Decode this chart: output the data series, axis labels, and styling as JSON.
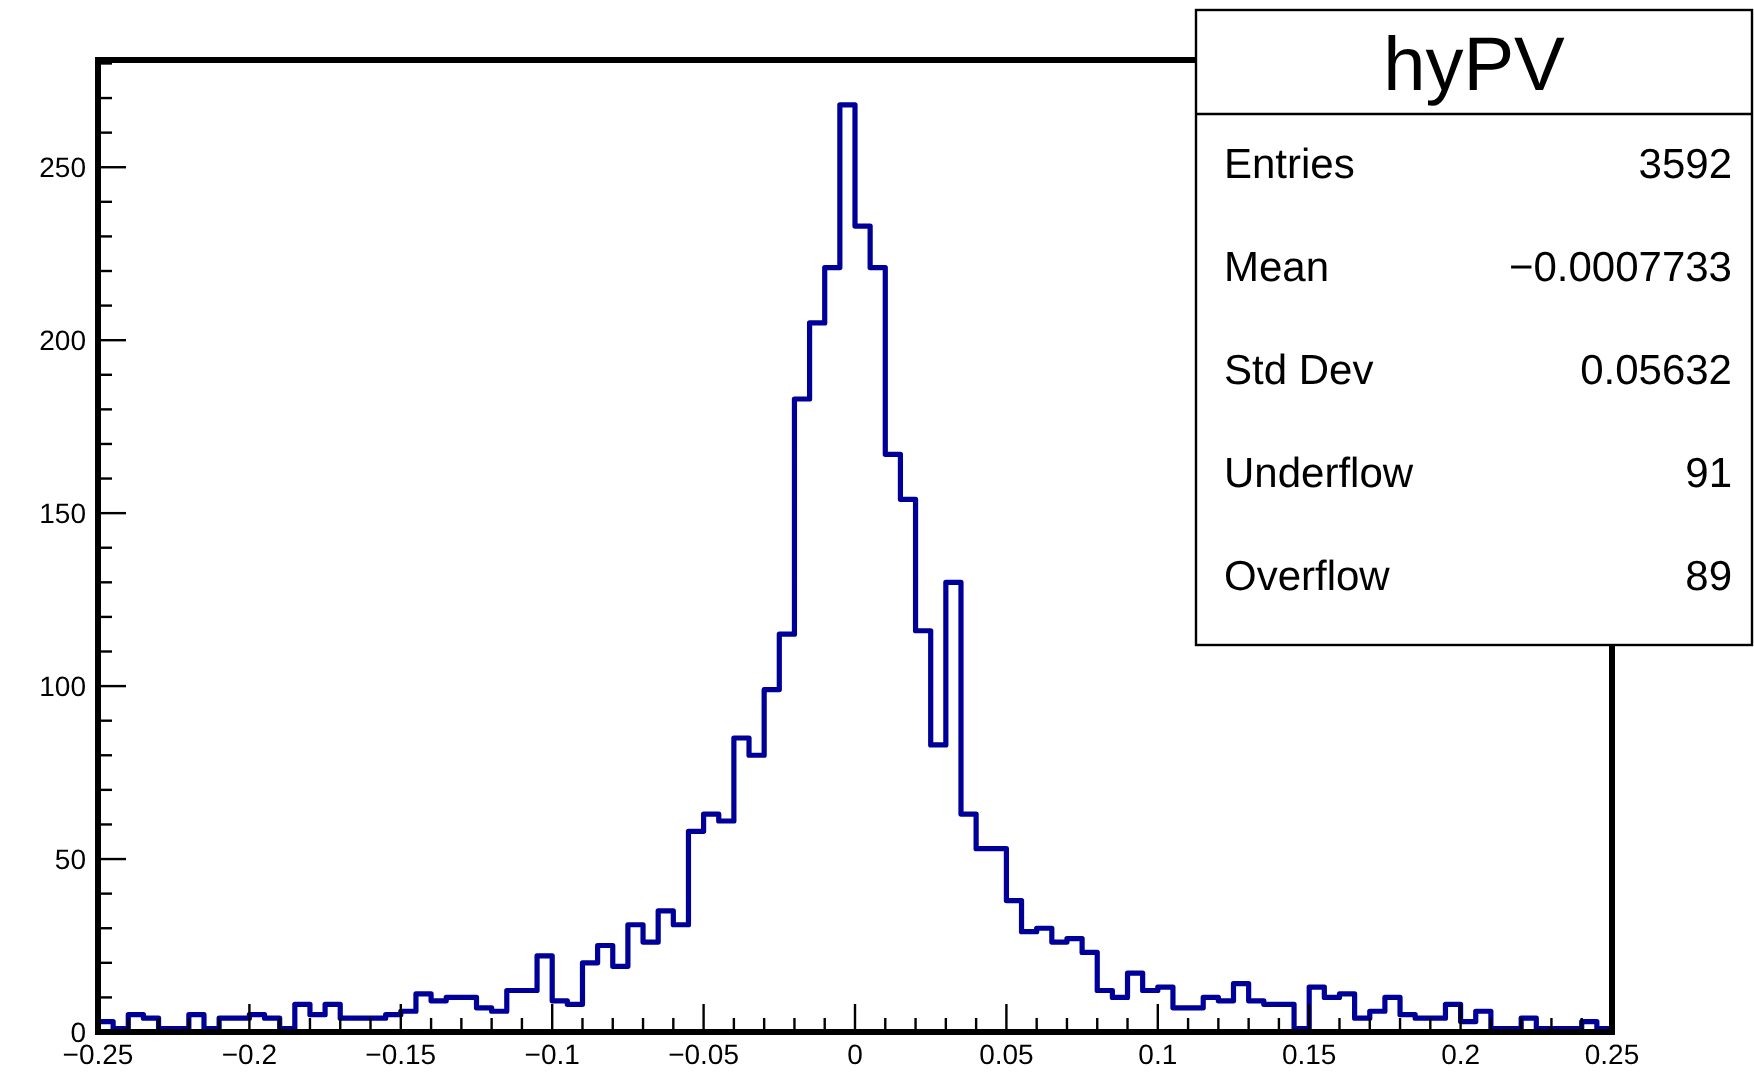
{
  "chart_data": {
    "type": "histogram",
    "bins": [
      -0.25,
      -0.245,
      -0.24,
      -0.235,
      -0.23,
      -0.225,
      -0.22,
      -0.215,
      -0.21,
      -0.205,
      -0.2,
      -0.195,
      -0.19,
      -0.185,
      -0.18,
      -0.175,
      -0.17,
      -0.165,
      -0.16,
      -0.155,
      -0.15,
      -0.145,
      -0.14,
      -0.135,
      -0.13,
      -0.125,
      -0.12,
      -0.115,
      -0.11,
      -0.105,
      -0.1,
      -0.095,
      -0.09,
      -0.085,
      -0.08,
      -0.075,
      -0.07,
      -0.065,
      -0.06,
      -0.055,
      -0.05,
      -0.045,
      -0.04,
      -0.035,
      -0.03,
      -0.025,
      -0.02,
      -0.015,
      -0.01,
      -0.005,
      0,
      0.005,
      0.01,
      0.015,
      0.02,
      0.025,
      0.03,
      0.035,
      0.04,
      0.045,
      0.05,
      0.055,
      0.06,
      0.065,
      0.07,
      0.075,
      0.08,
      0.085,
      0.09,
      0.095,
      0.1,
      0.105,
      0.11,
      0.115,
      0.12,
      0.125,
      0.13,
      0.135,
      0.14,
      0.145,
      0.15,
      0.155,
      0.16,
      0.165,
      0.17,
      0.175,
      0.18,
      0.185,
      0.19,
      0.195,
      0.2,
      0.205,
      0.21,
      0.215,
      0.22,
      0.225,
      0.23,
      0.235,
      0.24,
      0.245,
      0.25
    ],
    "values": [
      3,
      1,
      5,
      4,
      1,
      1,
      5,
      1,
      4,
      4,
      5,
      4,
      1,
      8,
      5,
      8,
      4,
      4,
      4,
      5,
      6,
      11,
      9,
      10,
      10,
      7,
      6,
      12,
      12,
      22,
      9,
      8,
      20,
      25,
      19,
      31,
      26,
      35,
      31,
      58,
      63,
      61,
      85,
      80,
      99,
      115,
      183,
      205,
      221,
      268,
      233,
      221,
      167,
      154,
      116,
      83,
      130,
      63,
      53,
      53,
      38,
      29,
      30,
      26,
      27,
      23,
      12,
      10,
      17,
      12,
      13,
      7,
      7,
      10,
      9,
      14,
      9,
      8,
      8,
      1,
      13,
      10,
      11,
      4,
      6,
      10,
      5,
      4,
      4,
      8,
      3,
      6,
      1,
      1,
      4,
      1,
      1,
      1,
      3,
      1
    ],
    "color": "#000099",
    "xlim": [
      -0.25,
      0.25
    ],
    "ylim": [
      0,
      281
    ],
    "xticks": [
      -0.25,
      {
        "value": -0.24,
        "label": null
      },
      {
        "value": -0.23,
        "label": null
      },
      {
        "value": -0.22,
        "label": null
      },
      {
        "value": -0.21,
        "label": null
      },
      -0.2,
      {
        "value": -0.19,
        "label": null
      },
      {
        "value": -0.18,
        "label": null
      },
      {
        "value": -0.17,
        "label": null
      },
      {
        "value": -0.16,
        "label": null
      },
      -0.15,
      {
        "value": -0.14,
        "label": null
      },
      {
        "value": -0.13,
        "label": null
      },
      {
        "value": -0.12,
        "label": null
      },
      {
        "value": -0.11,
        "label": null
      },
      -0.1,
      {
        "value": -0.09,
        "label": null
      },
      {
        "value": -0.08,
        "label": null
      },
      {
        "value": -0.07,
        "label": null
      },
      {
        "value": -0.06,
        "label": null
      },
      -0.05,
      {
        "value": -0.04,
        "label": null
      },
      {
        "value": -0.03,
        "label": null
      },
      {
        "value": -0.02,
        "label": null
      },
      {
        "value": -0.01,
        "label": null
      },
      0,
      {
        "value": 0.01,
        "label": null
      },
      {
        "value": 0.02,
        "label": null
      },
      {
        "value": 0.03,
        "label": null
      },
      {
        "value": 0.04,
        "label": null
      },
      0.05,
      {
        "value": 0.06,
        "label": null
      },
      {
        "value": 0.07,
        "label": null
      },
      {
        "value": 0.08,
        "label": null
      },
      {
        "value": 0.09,
        "label": null
      },
      0.1,
      {
        "value": 0.11,
        "label": null
      },
      {
        "value": 0.12,
        "label": null
      },
      {
        "value": 0.13,
        "label": null
      },
      {
        "value": 0.14,
        "label": null
      },
      0.15,
      {
        "value": 0.16,
        "label": null
      },
      {
        "value": 0.17,
        "label": null
      },
      {
        "value": 0.18,
        "label": null
      },
      {
        "value": 0.19,
        "label": null
      },
      0.2,
      {
        "value": 0.21,
        "label": null
      },
      {
        "value": 0.22,
        "label": null
      },
      {
        "value": 0.23,
        "label": null
      },
      {
        "value": 0.24,
        "label": null
      },
      0.25
    ],
    "yticks": [
      0,
      {
        "value": 10,
        "label": null
      },
      {
        "value": 20,
        "label": null
      },
      {
        "value": 30,
        "label": null
      },
      {
        "value": 40,
        "label": null
      },
      50,
      {
        "value": 60,
        "label": null
      },
      {
        "value": 70,
        "label": null
      },
      {
        "value": 80,
        "label": null
      },
      {
        "value": 90,
        "label": null
      },
      100,
      {
        "value": 110,
        "label": null
      },
      {
        "value": 120,
        "label": null
      },
      {
        "value": 130,
        "label": null
      },
      {
        "value": 140,
        "label": null
      },
      150,
      {
        "value": 160,
        "label": null
      },
      {
        "value": 170,
        "label": null
      },
      {
        "value": 180,
        "label": null
      },
      {
        "value": 190,
        "label": null
      },
      200,
      {
        "value": 210,
        "label": null
      },
      {
        "value": 220,
        "label": null
      },
      {
        "value": 230,
        "label": null
      },
      {
        "value": 240,
        "label": null
      },
      250,
      {
        "value": 260,
        "label": null
      },
      {
        "value": 270,
        "label": null
      },
      {
        "value": 280,
        "label": null
      }
    ],
    "annotations": [
      "hyPV",
      "Entries",
      "3592",
      "Mean",
      "−0.0007733",
      "Std Dev",
      "0.05632",
      "Underflow",
      "91",
      "Overflow",
      "89"
    ]
  }
}
